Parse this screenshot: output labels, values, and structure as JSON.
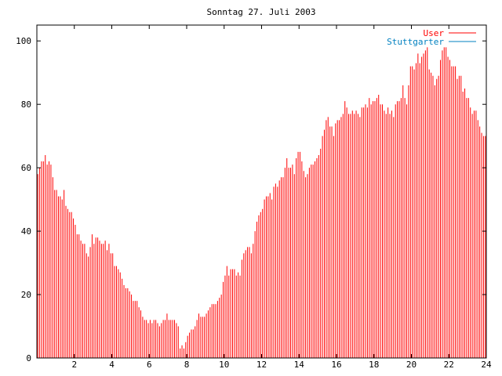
{
  "chart_data": {
    "type": "bar",
    "title": "Sonntag 27. Juli 2003",
    "xlabel": "",
    "ylabel": "",
    "xlim": [
      0,
      24
    ],
    "ylim": [
      0,
      105
    ],
    "xticks": [
      2,
      4,
      6,
      8,
      10,
      12,
      14,
      16,
      18,
      20,
      22,
      24
    ],
    "yticks": [
      0,
      20,
      40,
      60,
      80,
      100
    ],
    "grid": false,
    "legend_position": "top-right",
    "colors": {
      "User": "#ff0000",
      "Stuttgarter": "#0080c0"
    },
    "series": [
      {
        "name": "User",
        "x_step_hours": 0.1,
        "values": [
          58,
          60,
          62,
          62,
          64,
          61,
          62,
          61,
          57,
          53,
          53,
          51,
          51,
          50,
          53,
          48,
          47,
          46,
          46,
          44,
          42,
          39,
          39,
          37,
          36,
          36,
          33,
          32,
          35,
          39,
          36,
          38,
          38,
          37,
          36,
          36,
          37,
          34,
          36,
          33,
          33,
          29,
          29,
          28,
          27,
          25,
          23,
          22,
          22,
          21,
          20,
          18,
          18,
          18,
          16,
          15,
          13,
          12,
          12,
          11,
          12,
          11,
          12,
          12,
          11,
          10,
          11,
          12,
          12,
          14,
          12,
          12,
          12,
          12,
          11,
          10,
          3,
          4,
          3,
          5,
          7,
          8,
          9,
          9,
          10,
          12,
          14,
          13,
          13,
          13,
          14,
          15,
          16,
          17,
          17,
          17,
          18,
          19,
          20,
          24,
          26,
          29,
          26,
          28,
          28,
          28,
          26,
          27,
          26,
          31,
          33,
          34,
          35,
          35,
          33,
          36,
          40,
          43,
          45,
          46,
          47,
          50,
          51,
          51,
          52,
          50,
          54,
          55,
          54,
          56,
          57,
          57,
          60,
          63,
          60,
          60,
          61,
          58,
          63,
          65,
          65,
          62,
          59,
          57,
          58,
          60,
          61,
          61,
          62,
          63,
          64,
          66,
          70,
          72,
          75,
          76,
          73,
          73,
          70,
          74,
          75,
          75,
          76,
          77,
          81,
          79,
          77,
          77,
          78,
          77,
          78,
          77,
          76,
          79,
          79,
          80,
          79,
          82,
          80,
          81,
          81,
          82,
          83,
          80,
          80,
          78,
          77,
          79,
          77,
          78,
          76,
          80,
          81,
          81,
          82,
          86,
          82,
          80,
          86,
          92,
          92,
          91,
          93,
          96,
          93,
          95,
          96,
          97,
          98,
          91,
          90,
          89,
          86,
          88,
          89,
          94,
          97,
          98,
          98,
          95,
          94,
          92,
          92,
          92,
          88,
          89,
          89,
          84,
          85,
          82,
          82,
          79,
          77,
          78,
          78,
          75,
          73,
          71,
          70,
          70
        ]
      },
      {
        "name": "Stuttgarter",
        "values": []
      }
    ]
  }
}
